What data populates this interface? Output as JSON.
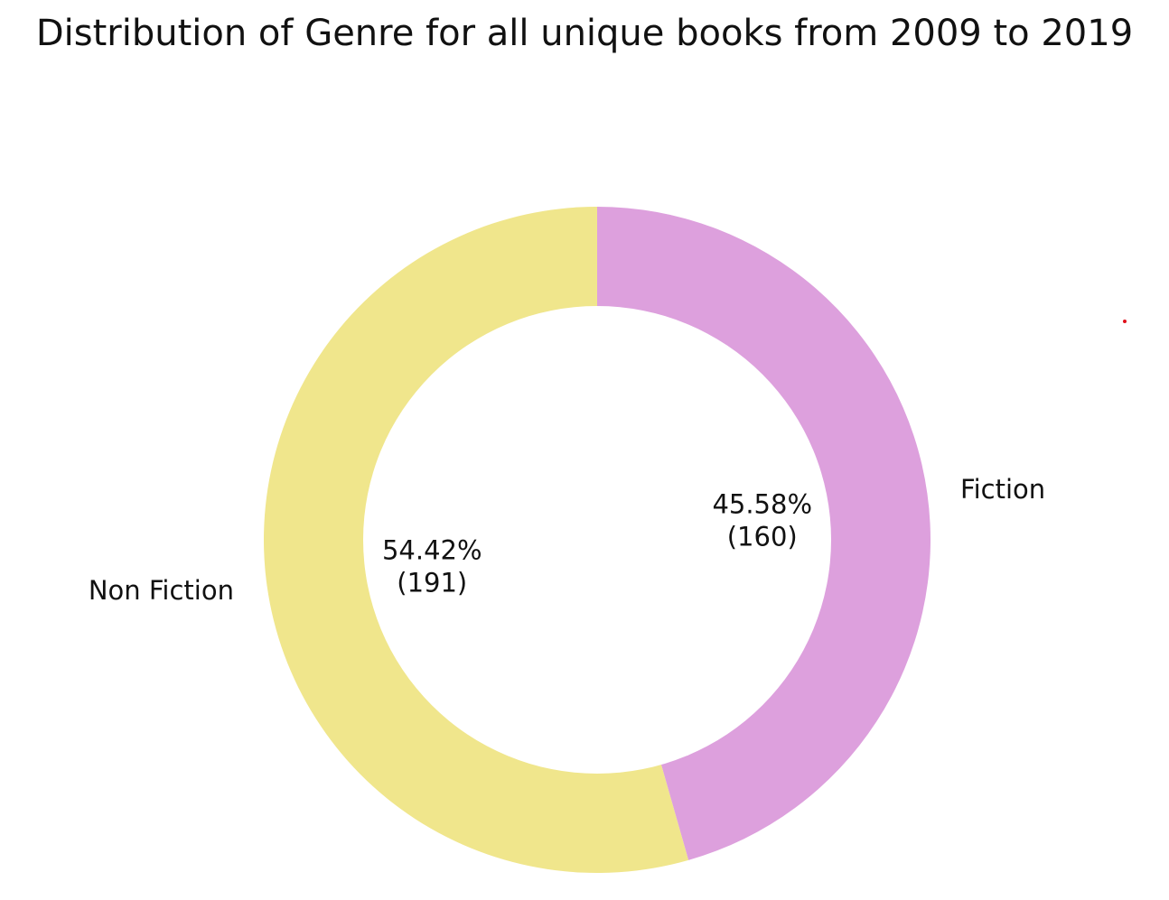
{
  "chart_data": {
    "type": "pie",
    "style": "donut",
    "title": "Distribution of Genre for all unique books from 2009 to 2019",
    "start_angle_deg": 90,
    "direction": "clockwise",
    "slices": [
      {
        "label": "Fiction",
        "value": 160,
        "percent": "45.58%",
        "count": "(160)",
        "color": "#dda0dd"
      },
      {
        "label": "Non Fiction",
        "value": 191,
        "percent": "54.42%",
        "count": "(191)",
        "color": "#f0e68c"
      }
    ],
    "legend": "none"
  }
}
